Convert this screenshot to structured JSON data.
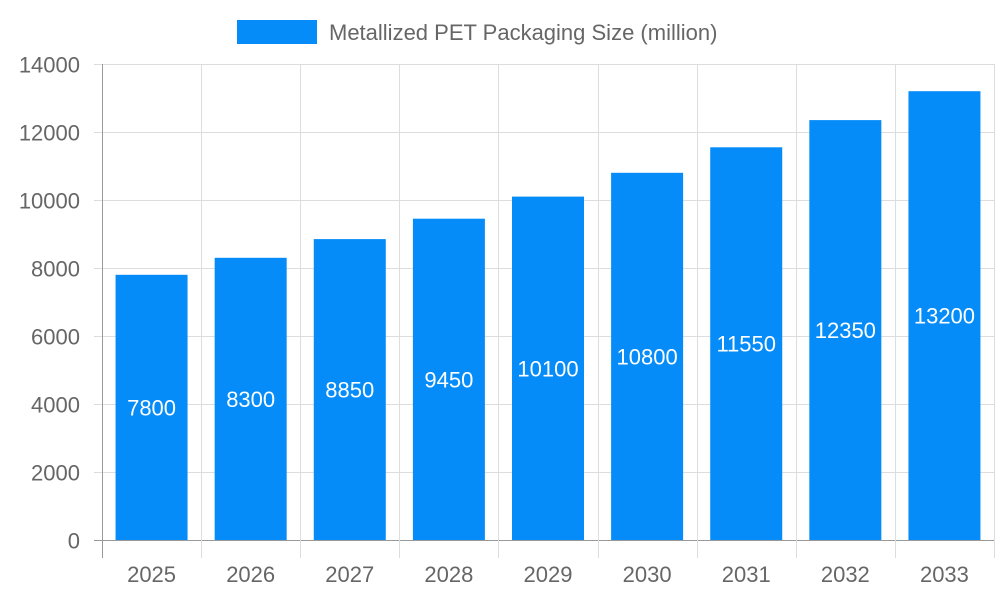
{
  "chart_data": {
    "type": "bar",
    "categories": [
      "2025",
      "2026",
      "2027",
      "2028",
      "2029",
      "2030",
      "2031",
      "2032",
      "2033"
    ],
    "series": [
      {
        "name": "Metallized PET Packaging Size (million)",
        "values": [
          7800,
          8300,
          8850,
          9450,
          10100,
          10800,
          11550,
          12350,
          13200
        ],
        "color": "#058cf9"
      }
    ],
    "ylim": [
      0,
      14000
    ],
    "yticks": [
      0,
      2000,
      4000,
      6000,
      8000,
      10000,
      12000,
      14000
    ],
    "grid": true,
    "legend": "top-center",
    "data_labels": true,
    "title": "",
    "xlabel": "",
    "ylabel": ""
  }
}
